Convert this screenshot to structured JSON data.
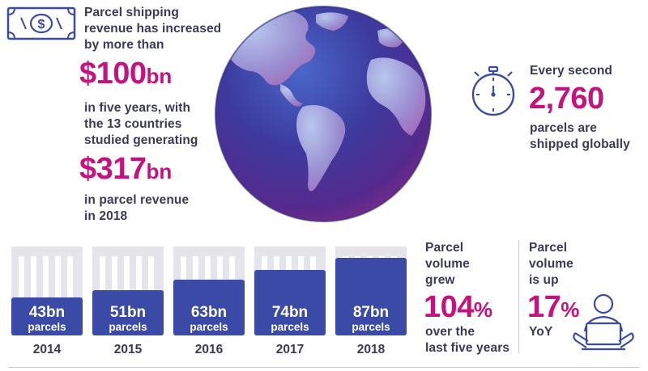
{
  "revenue": {
    "line1": "Parcel shipping",
    "line2": "revenue has increased",
    "line3": "by more than",
    "increase_value": "$100",
    "increase_unit": "bn",
    "line4": "in five years, with",
    "line5": "the 13 countries",
    "line6": "studied generating",
    "total_value": "$317",
    "total_unit": "bn",
    "line7": "in parcel revenue",
    "line8": "in 2018"
  },
  "per_second": {
    "line1": "Every second",
    "value": "2,760",
    "line2": "parcels are",
    "line3": "shipped globally"
  },
  "volume_growth": {
    "line1": "Parcel",
    "line2": "volume",
    "line3": "grew",
    "value": "104",
    "unit": "%",
    "line4": "over the",
    "line5": "last five years"
  },
  "yoy": {
    "line1": "Parcel",
    "line2": "volume",
    "line3": "is up",
    "value": "17",
    "unit": "%",
    "line4": "YoY"
  },
  "chart_data": {
    "type": "bar",
    "categories": [
      "2014",
      "2015",
      "2016",
      "2017",
      "2018"
    ],
    "values": [
      43,
      51,
      63,
      74,
      87
    ],
    "value_labels": [
      "43bn",
      "51bn",
      "63bn",
      "74bn",
      "87bn"
    ],
    "unit_label": "parcels"
  },
  "colors": {
    "accent": "#c4137f",
    "bar": "#3b4aa6",
    "icon": "#3b4aa6",
    "crate": "#e4e4ea",
    "text": "#3a3a55"
  }
}
